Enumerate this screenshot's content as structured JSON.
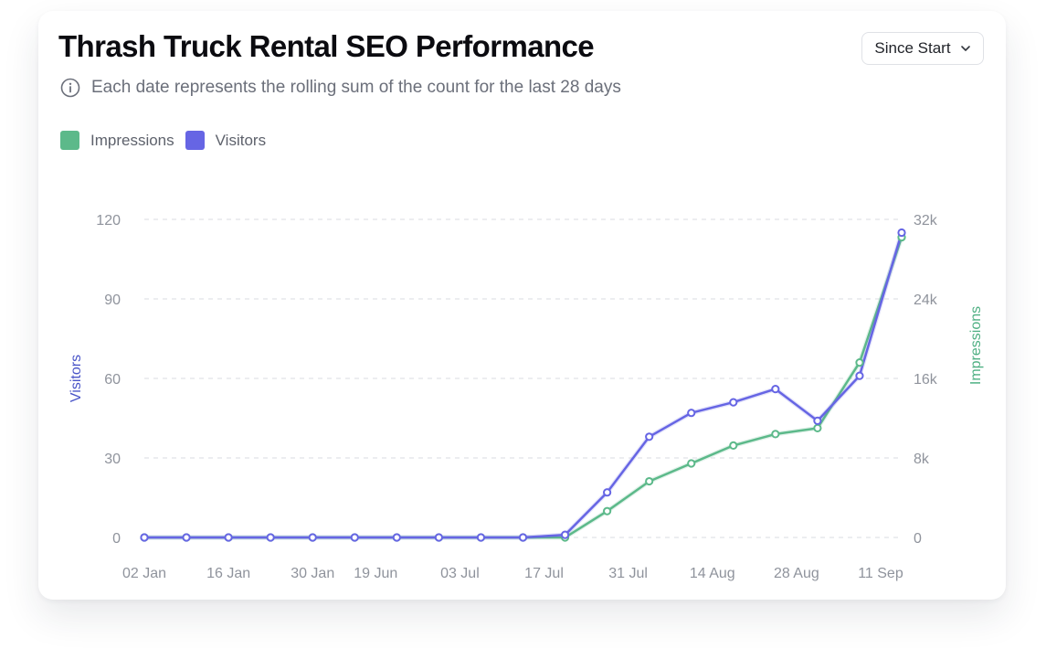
{
  "header": {
    "title": "Thrash Truck Rental SEO Performance",
    "subtitle": "Each date represents the rolling sum of the count for the last 28 days",
    "info_icon": "info-circle-icon"
  },
  "range_select": {
    "value": "Since Start",
    "icon": "chevron-down-icon"
  },
  "colors": {
    "impressions": "#5cb98a",
    "visitors": "#6665e4",
    "grid": "#d9dbe0",
    "visitors_axis": "#4a55c8",
    "impressions_axis": "#4fb083"
  },
  "chart_data": {
    "type": "line",
    "title": "Thrash Truck Rental SEO Performance",
    "x_labels": [
      "02 Jan",
      "16 Jan",
      "30 Jan",
      "19 Jun",
      "03 Jul",
      "17 Jul",
      "31 Jul",
      "14 Aug",
      "28 Aug",
      "11 Sep"
    ],
    "y_left": {
      "label": "Visitors",
      "min": 0,
      "max": 120,
      "ticks": [
        0,
        30,
        60,
        90,
        120
      ],
      "tick_labels": [
        "0",
        "30",
        "60",
        "90",
        "120"
      ]
    },
    "y_right": {
      "label": "Impressions",
      "min": 0,
      "max": 32000,
      "ticks": [
        0,
        8000,
        16000,
        24000,
        32000
      ],
      "tick_labels": [
        "0",
        "8k",
        "16k",
        "24k",
        "32k"
      ]
    },
    "series": [
      {
        "name": "Impressions",
        "axis": "right",
        "values": [
          0,
          0,
          0,
          0,
          0,
          0,
          0,
          0,
          0,
          0,
          0,
          2650,
          5650,
          7450,
          9250,
          10400,
          11000,
          17600,
          30200
        ]
      },
      {
        "name": "Visitors",
        "axis": "left",
        "values": [
          0,
          0,
          0,
          0,
          0,
          0,
          0,
          0,
          0,
          0,
          1,
          17,
          38,
          47,
          51,
          56,
          44,
          61,
          115
        ]
      }
    ],
    "legend": [
      "Impressions",
      "Visitors"
    ],
    "grid": true
  }
}
